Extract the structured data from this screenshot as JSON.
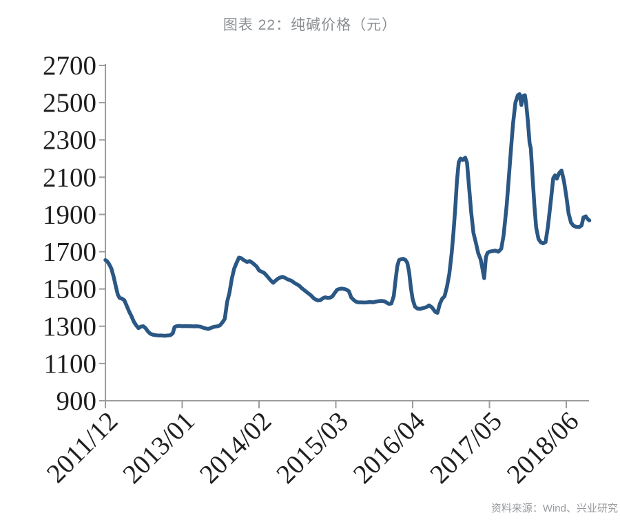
{
  "header": {
    "title": "图表 22：纯碱价格（元）"
  },
  "footer": {
    "source": "资料来源：Wind、兴业研究"
  },
  "chart_data": {
    "type": "line",
    "title": "图表 22：纯碱价格（元）",
    "grid": false,
    "legend_position": "none",
    "y_axis": {
      "min": 900,
      "max": 2700,
      "tick_step": 200,
      "tick_labels": [
        "900",
        "1100",
        "1300",
        "1500",
        "1700",
        "1900",
        "2100",
        "2300",
        "2500",
        "2700"
      ]
    },
    "x_axis": {
      "tick_labels": [
        "2011/12",
        "2013/01",
        "2014/02",
        "2015/03",
        "2016/04",
        "2017/05",
        "2018/06"
      ],
      "tick_month_offsets": [
        0,
        13,
        26,
        39,
        52,
        65,
        78
      ],
      "label_rotation_deg": 45,
      "end_month_offset": 81.9
    },
    "styles": {
      "line_color": "#2a5784",
      "axis_color": "#9c9c9c",
      "tick_label_color": "#1f1f1f",
      "title_color": "#8a8e93",
      "source_color": "#97999c"
    },
    "series": [
      {
        "name": "纯碱价格",
        "unit": "元",
        "points": [
          [
            0,
            1655
          ],
          [
            0.3,
            1648
          ],
          [
            0.6,
            1635
          ],
          [
            1,
            1610
          ],
          [
            1.4,
            1565
          ],
          [
            1.8,
            1510
          ],
          [
            2.1,
            1470
          ],
          [
            2.4,
            1452
          ],
          [
            2.8,
            1448
          ],
          [
            3.2,
            1440
          ],
          [
            3.6,
            1410
          ],
          [
            4,
            1380
          ],
          [
            4.4,
            1355
          ],
          [
            4.8,
            1325
          ],
          [
            5.2,
            1305
          ],
          [
            5.6,
            1290
          ],
          [
            6,
            1298
          ],
          [
            6.4,
            1300
          ],
          [
            6.8,
            1290
          ],
          [
            7.2,
            1272
          ],
          [
            7.6,
            1260
          ],
          [
            8,
            1255
          ],
          [
            8.5,
            1252
          ],
          [
            9,
            1250
          ],
          [
            9.5,
            1250
          ],
          [
            10,
            1249
          ],
          [
            10.5,
            1250
          ],
          [
            11,
            1252
          ],
          [
            11.4,
            1262
          ],
          [
            11.7,
            1295
          ],
          [
            12,
            1300
          ],
          [
            12.5,
            1302
          ],
          [
            13,
            1300
          ],
          [
            13.5,
            1301
          ],
          [
            14,
            1300
          ],
          [
            14.5,
            1300
          ],
          [
            15,
            1299
          ],
          [
            15.5,
            1300
          ],
          [
            16,
            1298
          ],
          [
            16.5,
            1293
          ],
          [
            17,
            1288
          ],
          [
            17.4,
            1285
          ],
          [
            17.8,
            1290
          ],
          [
            18.2,
            1295
          ],
          [
            18.6,
            1298
          ],
          [
            19,
            1300
          ],
          [
            19.4,
            1305
          ],
          [
            19.8,
            1320
          ],
          [
            20.2,
            1340
          ],
          [
            20.6,
            1430
          ],
          [
            21,
            1480
          ],
          [
            21.4,
            1555
          ],
          [
            21.8,
            1610
          ],
          [
            22.2,
            1640
          ],
          [
            22.6,
            1668
          ],
          [
            23,
            1665
          ],
          [
            23.4,
            1655
          ],
          [
            23.8,
            1648
          ],
          [
            24,
            1645
          ],
          [
            24.4,
            1650
          ],
          [
            24.8,
            1642
          ],
          [
            25.2,
            1632
          ],
          [
            25.6,
            1620
          ],
          [
            26,
            1600
          ],
          [
            26.4,
            1593
          ],
          [
            26.8,
            1588
          ],
          [
            27.2,
            1575
          ],
          [
            27.6,
            1560
          ],
          [
            28,
            1545
          ],
          [
            28.4,
            1533
          ],
          [
            28.8,
            1545
          ],
          [
            29.2,
            1555
          ],
          [
            29.6,
            1562
          ],
          [
            30,
            1565
          ],
          [
            30.4,
            1560
          ],
          [
            30.8,
            1552
          ],
          [
            31.2,
            1548
          ],
          [
            31.6,
            1542
          ],
          [
            32,
            1532
          ],
          [
            32.4,
            1525
          ],
          [
            32.8,
            1518
          ],
          [
            33.2,
            1505
          ],
          [
            33.6,
            1495
          ],
          [
            34,
            1485
          ],
          [
            34.4,
            1475
          ],
          [
            34.8,
            1465
          ],
          [
            35.2,
            1452
          ],
          [
            35.6,
            1443
          ],
          [
            36,
            1438
          ],
          [
            36.4,
            1440
          ],
          [
            36.8,
            1450
          ],
          [
            37.2,
            1455
          ],
          [
            37.6,
            1452
          ],
          [
            38,
            1453
          ],
          [
            38.4,
            1460
          ],
          [
            38.8,
            1478
          ],
          [
            39.2,
            1495
          ],
          [
            39.6,
            1500
          ],
          [
            40,
            1502
          ],
          [
            40.4,
            1500
          ],
          [
            40.8,
            1496
          ],
          [
            41.2,
            1488
          ],
          [
            41.6,
            1455
          ],
          [
            42,
            1442
          ],
          [
            42.4,
            1432
          ],
          [
            42.8,
            1428
          ],
          [
            43.3,
            1428
          ],
          [
            43.8,
            1427
          ],
          [
            44.3,
            1428
          ],
          [
            44.8,
            1430
          ],
          [
            45.3,
            1428
          ],
          [
            45.8,
            1432
          ],
          [
            46.3,
            1435
          ],
          [
            46.8,
            1436
          ],
          [
            47.3,
            1433
          ],
          [
            47.7,
            1425
          ],
          [
            48,
            1420
          ],
          [
            48.4,
            1422
          ],
          [
            48.8,
            1462
          ],
          [
            49.1,
            1545
          ],
          [
            49.4,
            1622
          ],
          [
            49.7,
            1655
          ],
          [
            50,
            1660
          ],
          [
            50.4,
            1662
          ],
          [
            50.8,
            1655
          ],
          [
            51.1,
            1640
          ],
          [
            51.4,
            1590
          ],
          [
            51.7,
            1508
          ],
          [
            52,
            1445
          ],
          [
            52.4,
            1405
          ],
          [
            52.8,
            1395
          ],
          [
            53.3,
            1393
          ],
          [
            53.8,
            1398
          ],
          [
            54.3,
            1402
          ],
          [
            54.8,
            1412
          ],
          [
            55.3,
            1400
          ],
          [
            55.8,
            1378
          ],
          [
            56.2,
            1372
          ],
          [
            56.6,
            1420
          ],
          [
            57,
            1448
          ],
          [
            57.4,
            1460
          ],
          [
            57.8,
            1510
          ],
          [
            58.2,
            1580
          ],
          [
            58.6,
            1690
          ],
          [
            58.9,
            1800
          ],
          [
            59.2,
            1930
          ],
          [
            59.5,
            2080
          ],
          [
            59.8,
            2180
          ],
          [
            60.1,
            2200
          ],
          [
            60.5,
            2193
          ],
          [
            60.9,
            2205
          ],
          [
            61.2,
            2178
          ],
          [
            61.5,
            2065
          ],
          [
            61.9,
            1915
          ],
          [
            62.3,
            1800
          ],
          [
            62.7,
            1748
          ],
          [
            63.1,
            1692
          ],
          [
            63.5,
            1660
          ],
          [
            63.8,
            1612
          ],
          [
            64.1,
            1558
          ],
          [
            64.4,
            1672
          ],
          [
            64.7,
            1695
          ],
          [
            65,
            1700
          ],
          [
            65.5,
            1703
          ],
          [
            66,
            1706
          ],
          [
            66.5,
            1700
          ],
          [
            67,
            1716
          ],
          [
            67.4,
            1790
          ],
          [
            67.9,
            1945
          ],
          [
            68.2,
            2062
          ],
          [
            68.7,
            2272
          ],
          [
            69,
            2390
          ],
          [
            69.4,
            2500
          ],
          [
            69.8,
            2540
          ],
          [
            70.1,
            2546
          ],
          [
            70.4,
            2488
          ],
          [
            70.7,
            2536
          ],
          [
            71,
            2540
          ],
          [
            71.2,
            2498
          ],
          [
            71.5,
            2400
          ],
          [
            71.8,
            2282
          ],
          [
            72,
            2256
          ],
          [
            72.3,
            2100
          ],
          [
            72.6,
            1950
          ],
          [
            72.9,
            1830
          ],
          [
            73.3,
            1768
          ],
          [
            73.7,
            1750
          ],
          [
            74.1,
            1745
          ],
          [
            74.5,
            1752
          ],
          [
            74.9,
            1836
          ],
          [
            75.4,
            1976
          ],
          [
            75.8,
            2095
          ],
          [
            76.1,
            2110
          ],
          [
            76.4,
            2092
          ],
          [
            76.8,
            2122
          ],
          [
            77.2,
            2136
          ],
          [
            77.6,
            2080
          ],
          [
            78,
            2000
          ],
          [
            78.4,
            1905
          ],
          [
            78.8,
            1856
          ],
          [
            79.2,
            1840
          ],
          [
            79.7,
            1833
          ],
          [
            80.2,
            1832
          ],
          [
            80.6,
            1841
          ],
          [
            80.9,
            1884
          ],
          [
            81.3,
            1890
          ],
          [
            81.6,
            1876
          ],
          [
            81.9,
            1868
          ]
        ]
      }
    ]
  }
}
